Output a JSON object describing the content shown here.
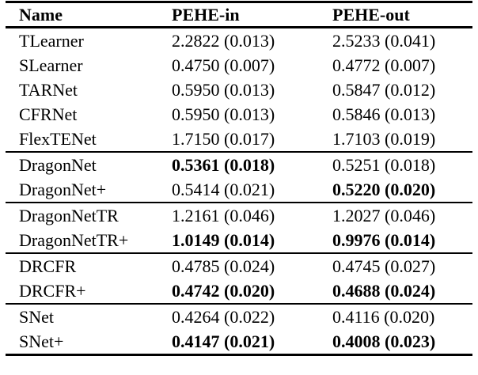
{
  "colors": {
    "text": "#000000",
    "background": "#ffffff",
    "rule": "#000000"
  },
  "columns": [
    "Name",
    "PEHE-in",
    "PEHE-out"
  ],
  "chart_data": {
    "type": "table",
    "title": "",
    "column_headers": [
      "Name",
      "PEHE-in",
      "PEHE-out"
    ],
    "groups": [
      {
        "rows": [
          {
            "name": "TLearner",
            "pehe_in": {
              "text": "2.2822 (0.013)",
              "bold": false
            },
            "pehe_out": {
              "text": "2.5233 (0.041)",
              "bold": false
            }
          },
          {
            "name": "SLearner",
            "pehe_in": {
              "text": "0.4750 (0.007)",
              "bold": false
            },
            "pehe_out": {
              "text": "0.4772 (0.007)",
              "bold": false
            }
          },
          {
            "name": "TARNet",
            "pehe_in": {
              "text": "0.5950 (0.013)",
              "bold": false
            },
            "pehe_out": {
              "text": "0.5847 (0.012)",
              "bold": false
            }
          },
          {
            "name": "CFRNet",
            "pehe_in": {
              "text": "0.5950 (0.013)",
              "bold": false
            },
            "pehe_out": {
              "text": "0.5846 (0.013)",
              "bold": false
            }
          },
          {
            "name": "FlexTENet",
            "pehe_in": {
              "text": "1.7150 (0.017)",
              "bold": false
            },
            "pehe_out": {
              "text": "1.7103 (0.019)",
              "bold": false
            }
          }
        ]
      },
      {
        "rows": [
          {
            "name": "DragonNet",
            "pehe_in": {
              "text": "0.5361 (0.018)",
              "bold": true
            },
            "pehe_out": {
              "text": "0.5251 (0.018)",
              "bold": false
            }
          },
          {
            "name": "DragonNet+",
            "pehe_in": {
              "text": "0.5414 (0.021)",
              "bold": false
            },
            "pehe_out": {
              "text": "0.5220 (0.020)",
              "bold": true
            }
          }
        ]
      },
      {
        "rows": [
          {
            "name": "DragonNetTR",
            "pehe_in": {
              "text": "1.2161 (0.046)",
              "bold": false
            },
            "pehe_out": {
              "text": "1.2027 (0.046)",
              "bold": false
            }
          },
          {
            "name": "DragonNetTR+",
            "pehe_in": {
              "text": "1.0149 (0.014)",
              "bold": true
            },
            "pehe_out": {
              "text": "0.9976 (0.014)",
              "bold": true
            }
          }
        ]
      },
      {
        "rows": [
          {
            "name": "DRCFR",
            "pehe_in": {
              "text": "0.4785 (0.024)",
              "bold": false
            },
            "pehe_out": {
              "text": "0.4745 (0.027)",
              "bold": false
            }
          },
          {
            "name": "DRCFR+",
            "pehe_in": {
              "text": "0.4742 (0.020)",
              "bold": true
            },
            "pehe_out": {
              "text": "0.4688 (0.024)",
              "bold": true
            }
          }
        ]
      },
      {
        "rows": [
          {
            "name": "SNet",
            "pehe_in": {
              "text": "0.4264 (0.022)",
              "bold": false
            },
            "pehe_out": {
              "text": "0.4116 (0.020)",
              "bold": false
            }
          },
          {
            "name": "SNet+",
            "pehe_in": {
              "text": "0.4147 (0.021)",
              "bold": true
            },
            "pehe_out": {
              "text": "0.4008 (0.023)",
              "bold": true
            }
          }
        ]
      }
    ]
  }
}
